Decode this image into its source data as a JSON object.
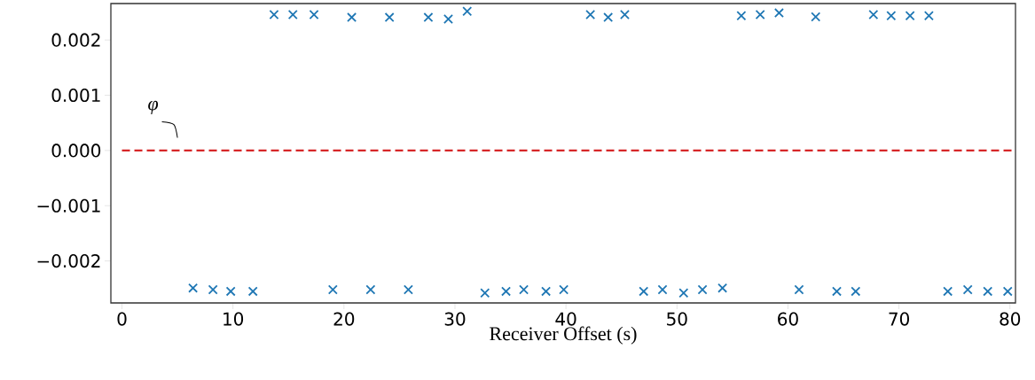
{
  "chart_data": {
    "type": "scatter",
    "xlabel": "Receiver Offset (s)",
    "marker": "cross",
    "grid": false,
    "xlim": [
      -1,
      80.5
    ],
    "ylim": [
      -0.00276,
      0.00266
    ],
    "xticks": [
      0,
      10,
      20,
      30,
      40,
      50,
      60,
      70,
      80
    ],
    "yticks": [
      {
        "value": -0.002,
        "label": "−0.002"
      },
      {
        "value": -0.001,
        "label": "−0.001"
      },
      {
        "value": 0,
        "label": "0.000"
      },
      {
        "value": 0.001,
        "label": "0.001"
      },
      {
        "value": 0.002,
        "label": "0.002"
      }
    ],
    "series": [
      {
        "color": "#1f77b4",
        "x": [
          13.7,
          15.4,
          17.3,
          20.7,
          24.1,
          27.6,
          29.4,
          31.1,
          42.2,
          43.8,
          45.3,
          55.8,
          57.5,
          59.2,
          62.5,
          67.7,
          69.3,
          71.0,
          72.7,
          6.4,
          8.2,
          9.8,
          11.8,
          19.0,
          22.4,
          25.8,
          32.7,
          34.6,
          36.2,
          38.2,
          39.8,
          47.0,
          48.7,
          50.6,
          52.3,
          54.1,
          61.0,
          64.4,
          66.1,
          74.4,
          76.2,
          78.0,
          79.8
        ],
        "values": [
          0.00246,
          0.00246,
          0.00246,
          0.00241,
          0.00241,
          0.00241,
          0.00238,
          0.00252,
          0.00246,
          0.00241,
          0.00246,
          0.00244,
          0.00246,
          0.00249,
          0.00242,
          0.00246,
          0.00244,
          0.00244,
          0.00244,
          -0.00249,
          -0.00252,
          -0.00255,
          -0.00255,
          -0.00252,
          -0.00252,
          -0.00252,
          -0.00258,
          -0.00255,
          -0.00252,
          -0.00255,
          -0.00252,
          -0.00255,
          -0.00252,
          -0.00258,
          -0.00252,
          -0.00249,
          -0.00252,
          -0.00255,
          -0.00255,
          -0.00255,
          -0.00252,
          -0.00255,
          -0.00255
        ]
      }
    ],
    "ref_lines": [
      {
        "axis": "y",
        "value": 0,
        "label": "φ",
        "color": "#d62728",
        "line_style": "dashed"
      }
    ]
  }
}
